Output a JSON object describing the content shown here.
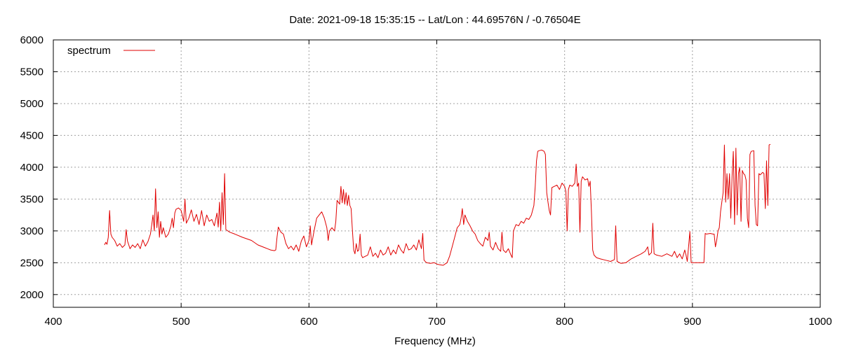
{
  "chart_data": {
    "type": "line",
    "title": "Date: 2021-09-18 15:35:15  --  Lat/Lon : 44.69576N / -0.76504E",
    "xlabel": "Frequency (MHz)",
    "ylabel": "",
    "xlim": [
      400,
      1000
    ],
    "ylim": [
      1800,
      6000
    ],
    "xticks": [
      400,
      500,
      600,
      700,
      800,
      900,
      1000
    ],
    "yticks": [
      2000,
      2500,
      3000,
      3500,
      4000,
      4500,
      5000,
      5500,
      6000
    ],
    "grid": true,
    "legend": "top-left",
    "colors": {
      "series": "#e00000"
    },
    "series": [
      {
        "name": "spectrum",
        "points": [
          [
            440,
            2780
          ],
          [
            441,
            2820
          ],
          [
            442,
            2790
          ],
          [
            443,
            2900
          ],
          [
            444,
            3320
          ],
          [
            445,
            2950
          ],
          [
            446,
            2900
          ],
          [
            448,
            2850
          ],
          [
            450,
            2760
          ],
          [
            452,
            2800
          ],
          [
            454,
            2740
          ],
          [
            456,
            2780
          ],
          [
            457,
            3020
          ],
          [
            458,
            2840
          ],
          [
            460,
            2720
          ],
          [
            462,
            2780
          ],
          [
            464,
            2740
          ],
          [
            466,
            2800
          ],
          [
            468,
            2720
          ],
          [
            470,
            2860
          ],
          [
            472,
            2760
          ],
          [
            474,
            2830
          ],
          [
            476,
            2950
          ],
          [
            477,
            3100
          ],
          [
            478,
            3250
          ],
          [
            479,
            3000
          ],
          [
            480,
            3660
          ],
          [
            481,
            3050
          ],
          [
            482,
            3300
          ],
          [
            483,
            2900
          ],
          [
            484,
            3150
          ],
          [
            485,
            2950
          ],
          [
            486,
            3050
          ],
          [
            488,
            2900
          ],
          [
            490,
            2950
          ],
          [
            492,
            3080
          ],
          [
            493,
            3200
          ],
          [
            494,
            3050
          ],
          [
            495,
            3280
          ],
          [
            496,
            3340
          ],
          [
            498,
            3360
          ],
          [
            500,
            3320
          ],
          [
            502,
            3150
          ],
          [
            503,
            3500
          ],
          [
            504,
            3120
          ],
          [
            506,
            3200
          ],
          [
            508,
            3330
          ],
          [
            510,
            3150
          ],
          [
            512,
            3260
          ],
          [
            514,
            3100
          ],
          [
            516,
            3320
          ],
          [
            518,
            3080
          ],
          [
            520,
            3250
          ],
          [
            522,
            3150
          ],
          [
            524,
            3180
          ],
          [
            526,
            3080
          ],
          [
            528,
            3280
          ],
          [
            529,
            3060
          ],
          [
            530,
            3450
          ],
          [
            531,
            3000
          ],
          [
            532,
            3600
          ],
          [
            533,
            3100
          ],
          [
            534,
            3900
          ],
          [
            535,
            3020
          ],
          [
            538,
            2980
          ],
          [
            542,
            2950
          ],
          [
            548,
            2900
          ],
          [
            555,
            2850
          ],
          [
            560,
            2780
          ],
          [
            565,
            2740
          ],
          [
            570,
            2700
          ],
          [
            573,
            2690
          ],
          [
            574,
            2700
          ],
          [
            575,
            2900
          ],
          [
            576,
            3060
          ],
          [
            578,
            2980
          ],
          [
            580,
            2950
          ],
          [
            582,
            2800
          ],
          [
            584,
            2720
          ],
          [
            586,
            2760
          ],
          [
            588,
            2700
          ],
          [
            590,
            2780
          ],
          [
            592,
            2680
          ],
          [
            594,
            2840
          ],
          [
            596,
            2920
          ],
          [
            598,
            2750
          ],
          [
            600,
            2850
          ],
          [
            601,
            3080
          ],
          [
            602,
            2780
          ],
          [
            604,
            3000
          ],
          [
            606,
            3200
          ],
          [
            608,
            3250
          ],
          [
            610,
            3300
          ],
          [
            612,
            3200
          ],
          [
            614,
            3050
          ],
          [
            615,
            2850
          ],
          [
            616,
            3000
          ],
          [
            618,
            3050
          ],
          [
            620,
            3000
          ],
          [
            621,
            3150
          ],
          [
            622,
            3480
          ],
          [
            624,
            3420
          ],
          [
            625,
            3700
          ],
          [
            626,
            3440
          ],
          [
            627,
            3650
          ],
          [
            628,
            3420
          ],
          [
            629,
            3600
          ],
          [
            630,
            3400
          ],
          [
            631,
            3560
          ],
          [
            632,
            3400
          ],
          [
            633,
            3350
          ],
          [
            634,
            3000
          ],
          [
            635,
            2700
          ],
          [
            636,
            2640
          ],
          [
            637,
            2800
          ],
          [
            638,
            2680
          ],
          [
            639,
            2700
          ],
          [
            640,
            2950
          ],
          [
            641,
            2620
          ],
          [
            642,
            2580
          ],
          [
            644,
            2600
          ],
          [
            646,
            2620
          ],
          [
            648,
            2750
          ],
          [
            650,
            2600
          ],
          [
            652,
            2650
          ],
          [
            654,
            2580
          ],
          [
            656,
            2700
          ],
          [
            658,
            2620
          ],
          [
            660,
            2650
          ],
          [
            662,
            2750
          ],
          [
            664,
            2620
          ],
          [
            666,
            2700
          ],
          [
            668,
            2640
          ],
          [
            670,
            2780
          ],
          [
            672,
            2700
          ],
          [
            674,
            2650
          ],
          [
            676,
            2800
          ],
          [
            678,
            2700
          ],
          [
            680,
            2720
          ],
          [
            682,
            2780
          ],
          [
            684,
            2700
          ],
          [
            686,
            2860
          ],
          [
            688,
            2720
          ],
          [
            689,
            2960
          ],
          [
            690,
            2540
          ],
          [
            692,
            2500
          ],
          [
            695,
            2490
          ],
          [
            698,
            2500
          ],
          [
            700,
            2480
          ],
          [
            702,
            2470
          ],
          [
            705,
            2460
          ],
          [
            708,
            2500
          ],
          [
            710,
            2600
          ],
          [
            712,
            2750
          ],
          [
            714,
            2900
          ],
          [
            716,
            3050
          ],
          [
            718,
            3100
          ],
          [
            719,
            3200
          ],
          [
            720,
            3350
          ],
          [
            721,
            3100
          ],
          [
            722,
            3250
          ],
          [
            724,
            3150
          ],
          [
            726,
            3080
          ],
          [
            728,
            3000
          ],
          [
            730,
            2950
          ],
          [
            732,
            2850
          ],
          [
            734,
            2800
          ],
          [
            736,
            2760
          ],
          [
            738,
            2900
          ],
          [
            740,
            2850
          ],
          [
            741,
            2980
          ],
          [
            742,
            2760
          ],
          [
            744,
            2700
          ],
          [
            746,
            2820
          ],
          [
            748,
            2720
          ],
          [
            750,
            2680
          ],
          [
            751,
            2980
          ],
          [
            752,
            2700
          ],
          [
            754,
            2660
          ],
          [
            756,
            2720
          ],
          [
            758,
            2620
          ],
          [
            759,
            2580
          ],
          [
            760,
            3000
          ],
          [
            761,
            3050
          ],
          [
            762,
            3100
          ],
          [
            764,
            3080
          ],
          [
            766,
            3150
          ],
          [
            768,
            3120
          ],
          [
            770,
            3200
          ],
          [
            772,
            3180
          ],
          [
            774,
            3250
          ],
          [
            776,
            3400
          ],
          [
            777,
            3700
          ],
          [
            778,
            4100
          ],
          [
            779,
            4250
          ],
          [
            780,
            4260
          ],
          [
            782,
            4270
          ],
          [
            784,
            4250
          ],
          [
            785,
            4200
          ],
          [
            786,
            3600
          ],
          [
            787,
            3450
          ],
          [
            788,
            3320
          ],
          [
            789,
            3250
          ],
          [
            790,
            3680
          ],
          [
            792,
            3700
          ],
          [
            794,
            3720
          ],
          [
            796,
            3650
          ],
          [
            798,
            3750
          ],
          [
            800,
            3700
          ],
          [
            801,
            3620
          ],
          [
            802,
            3000
          ],
          [
            803,
            3650
          ],
          [
            804,
            3720
          ],
          [
            806,
            3700
          ],
          [
            808,
            3750
          ],
          [
            809,
            4050
          ],
          [
            810,
            3700
          ],
          [
            811,
            3750
          ],
          [
            812,
            2980
          ],
          [
            813,
            3780
          ],
          [
            814,
            3850
          ],
          [
            816,
            3800
          ],
          [
            818,
            3820
          ],
          [
            819,
            3700
          ],
          [
            820,
            3780
          ],
          [
            821,
            3300
          ],
          [
            822,
            2700
          ],
          [
            823,
            2620
          ],
          [
            825,
            2580
          ],
          [
            828,
            2560
          ],
          [
            832,
            2540
          ],
          [
            836,
            2520
          ],
          [
            839,
            2550
          ],
          [
            840,
            3080
          ],
          [
            841,
            2520
          ],
          [
            844,
            2490
          ],
          [
            848,
            2500
          ],
          [
            852,
            2560
          ],
          [
            856,
            2600
          ],
          [
            860,
            2640
          ],
          [
            863,
            2680
          ],
          [
            865,
            2750
          ],
          [
            866,
            2620
          ],
          [
            868,
            2660
          ],
          [
            869,
            3120
          ],
          [
            870,
            2640
          ],
          [
            872,
            2620
          ],
          [
            876,
            2600
          ],
          [
            880,
            2640
          ],
          [
            884,
            2600
          ],
          [
            886,
            2680
          ],
          [
            888,
            2580
          ],
          [
            890,
            2640
          ],
          [
            892,
            2560
          ],
          [
            894,
            2700
          ],
          [
            895,
            2620
          ],
          [
            896,
            2520
          ],
          [
            898,
            2990
          ],
          [
            899,
            2500
          ],
          [
            902,
            2500
          ],
          [
            906,
            2500
          ],
          [
            909,
            2500
          ],
          [
            910,
            2960
          ],
          [
            911,
            2950
          ],
          [
            914,
            2960
          ],
          [
            916,
            2950
          ],
          [
            917,
            2950
          ],
          [
            918,
            2750
          ],
          [
            919,
            2850
          ],
          [
            920,
            3000
          ],
          [
            921,
            3050
          ],
          [
            922,
            3300
          ],
          [
            923,
            3450
          ],
          [
            924,
            3600
          ],
          [
            925,
            4350
          ],
          [
            926,
            3450
          ],
          [
            927,
            3900
          ],
          [
            928,
            3500
          ],
          [
            929,
            3900
          ],
          [
            930,
            3200
          ],
          [
            931,
            3850
          ],
          [
            932,
            4250
          ],
          [
            933,
            3100
          ],
          [
            934,
            4300
          ],
          [
            935,
            3250
          ],
          [
            936,
            3900
          ],
          [
            937,
            4000
          ],
          [
            938,
            3150
          ],
          [
            939,
            3950
          ],
          [
            940,
            3900
          ],
          [
            941,
            3880
          ],
          [
            942,
            3800
          ],
          [
            943,
            3200
          ],
          [
            944,
            3050
          ],
          [
            945,
            4200
          ],
          [
            946,
            4250
          ],
          [
            948,
            4260
          ],
          [
            949,
            3400
          ],
          [
            950,
            3100
          ],
          [
            951,
            3080
          ],
          [
            952,
            3900
          ],
          [
            953,
            3880
          ],
          [
            954,
            3900
          ],
          [
            955,
            3920
          ],
          [
            956,
            3900
          ],
          [
            957,
            3350
          ],
          [
            958,
            4100
          ],
          [
            959,
            3400
          ],
          [
            960,
            4350
          ],
          [
            961,
            4360
          ]
        ]
      }
    ]
  }
}
